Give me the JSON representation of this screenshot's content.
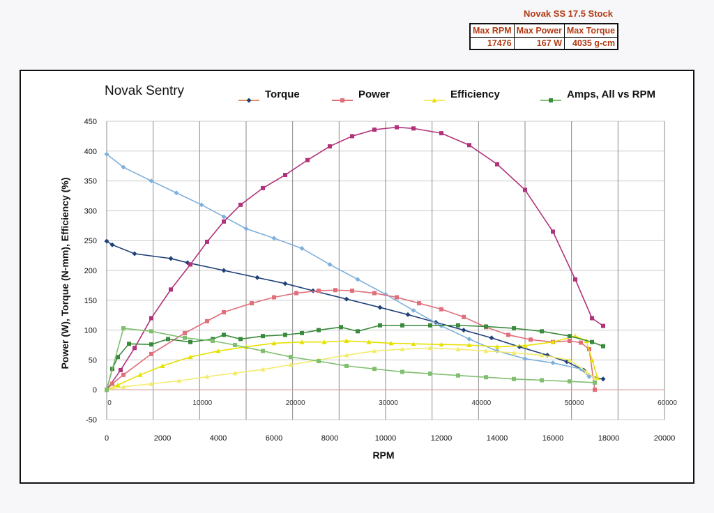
{
  "spec": {
    "title": "Novak SS 17.5 Stock",
    "headers": [
      "Max RPM",
      "Max Power",
      "Max Torque"
    ],
    "values": [
      "17476",
      "167 W",
      "4035 g-cm"
    ]
  },
  "chart_data": {
    "type": "line",
    "title": "Novak Sentry",
    "xlabel": "RPM",
    "ylabel": "Power (W), Torque (N-mm), Efficiency (%)",
    "xlim": [
      0,
      20000
    ],
    "ylim": [
      -50,
      450
    ],
    "x_ticks": [
      "0",
      "2000",
      "4000",
      "6000",
      "8000",
      "10000",
      "12000",
      "14000",
      "16000",
      "18000",
      "20000"
    ],
    "y_ticks": [
      "450",
      "400",
      "350",
      "300",
      "250",
      "200",
      "150",
      "100",
      "50",
      "0",
      "-50"
    ],
    "secondary_x_ticks": [
      "0",
      "10000",
      "20000",
      "30000",
      "40000",
      "50000",
      "60000"
    ],
    "secondary_xlim": [
      0,
      60000
    ],
    "legend": [
      "Torque",
      "Power",
      "Efficiency",
      "Amps,  All vs RPM"
    ],
    "series": [
      {
        "name": "Torque",
        "color": "#1d3f78",
        "marker": "diamond",
        "x": [
          0,
          200,
          1000,
          2300,
          2900,
          4200,
          5400,
          6400,
          7400,
          8600,
          9800,
          10800,
          11800,
          12800,
          13800,
          14800,
          15800,
          16500,
          17100,
          17500,
          17800
        ],
        "y": [
          249,
          243,
          228,
          220,
          213,
          200,
          188,
          178,
          166,
          152,
          138,
          126,
          113,
          100,
          87,
          72,
          58,
          47,
          33,
          20,
          18
        ]
      },
      {
        "name": "Torque",
        "color": "#7fb0dc",
        "marker": "diamond",
        "x": [
          0,
          600,
          1600,
          2500,
          3400,
          4200,
          5000,
          6000,
          7000,
          8000,
          9000,
          10000,
          11000,
          12000,
          13000,
          14000,
          15000,
          16000,
          17000,
          17300
        ],
        "y": [
          395,
          373,
          350,
          330,
          310,
          290,
          270,
          254,
          237,
          210,
          185,
          160,
          133,
          107,
          85,
          65,
          52,
          45,
          35,
          22
        ]
      },
      {
        "name": "Power",
        "color": "#b0327a",
        "marker": "square",
        "x": [
          0,
          500,
          1000,
          1600,
          2300,
          3000,
          3600,
          4200,
          4800,
          5600,
          6400,
          7200,
          8000,
          8800,
          9600,
          10400,
          11000,
          12000,
          13000,
          14000,
          15000,
          16000,
          16800,
          17400,
          17800
        ],
        "y": [
          0,
          33,
          70,
          120,
          168,
          210,
          248,
          282,
          310,
          338,
          360,
          385,
          408,
          425,
          436,
          440,
          438,
          430,
          410,
          378,
          335,
          265,
          185,
          120,
          107
        ]
      },
      {
        "name": "Power",
        "color": "#e06f7a",
        "marker": "square",
        "x": [
          0,
          200,
          600,
          1600,
          2800,
          3600,
          4200,
          5200,
          6000,
          6800,
          7600,
          8200,
          8800,
          9600,
          10400,
          11200,
          12000,
          12800,
          13600,
          14400,
          15200,
          16000,
          16600,
          17000,
          17300,
          17500
        ],
        "y": [
          0,
          10,
          25,
          60,
          95,
          115,
          130,
          145,
          155,
          162,
          166,
          167,
          166,
          162,
          155,
          145,
          135,
          122,
          105,
          92,
          84,
          80,
          82,
          79,
          68,
          0
        ]
      },
      {
        "name": "Efficiency",
        "color": "#e6e000",
        "marker": "triangle",
        "x": [
          0,
          400,
          1200,
          2000,
          3000,
          4000,
          5000,
          6000,
          7000,
          7800,
          8600,
          9400,
          10200,
          11000,
          12000,
          13000,
          14000,
          15000,
          16000,
          16800,
          17200,
          17400,
          17600
        ],
        "y": [
          0,
          8,
          25,
          40,
          55,
          65,
          72,
          78,
          80,
          80,
          82,
          80,
          78,
          77,
          76,
          75,
          72,
          74,
          80,
          90,
          82,
          50,
          20
        ]
      },
      {
        "name": "Efficiency",
        "color": "#f2eb6c",
        "marker": "triangle",
        "x": [
          0,
          600,
          1600,
          2600,
          3600,
          4600,
          5600,
          6600,
          7600,
          8600,
          9600,
          10600,
          11600,
          12600,
          13600,
          14600,
          15600,
          16600,
          17200,
          17500
        ],
        "y": [
          0,
          5,
          10,
          15,
          22,
          28,
          34,
          42,
          50,
          58,
          65,
          68,
          70,
          68,
          65,
          62,
          58,
          50,
          30,
          20
        ]
      },
      {
        "name": "Amps",
        "color": "#3a8a3c",
        "marker": "square",
        "x": [
          0,
          200,
          400,
          800,
          1600,
          2200,
          3000,
          3800,
          4200,
          4800,
          5600,
          6400,
          7000,
          7600,
          8400,
          9000,
          9800,
          10600,
          11600,
          12600,
          13600,
          14600,
          15600,
          16600,
          17400,
          17800
        ],
        "y": [
          0,
          35,
          55,
          77,
          76,
          85,
          80,
          85,
          92,
          85,
          90,
          92,
          95,
          100,
          105,
          98,
          108,
          108,
          108,
          108,
          106,
          103,
          98,
          90,
          80,
          73
        ]
      },
      {
        "name": "Amps",
        "color": "#7fbf6f",
        "marker": "square",
        "x": [
          0,
          600,
          1600,
          2800,
          3800,
          4600,
          5600,
          6600,
          7600,
          8600,
          9600,
          10600,
          11600,
          12600,
          13600,
          14600,
          15600,
          16600,
          17500
        ],
        "y": [
          0,
          103,
          98,
          87,
          82,
          75,
          65,
          55,
          48,
          40,
          35,
          30,
          27,
          24,
          21,
          18,
          16,
          14,
          12
        ]
      }
    ]
  }
}
